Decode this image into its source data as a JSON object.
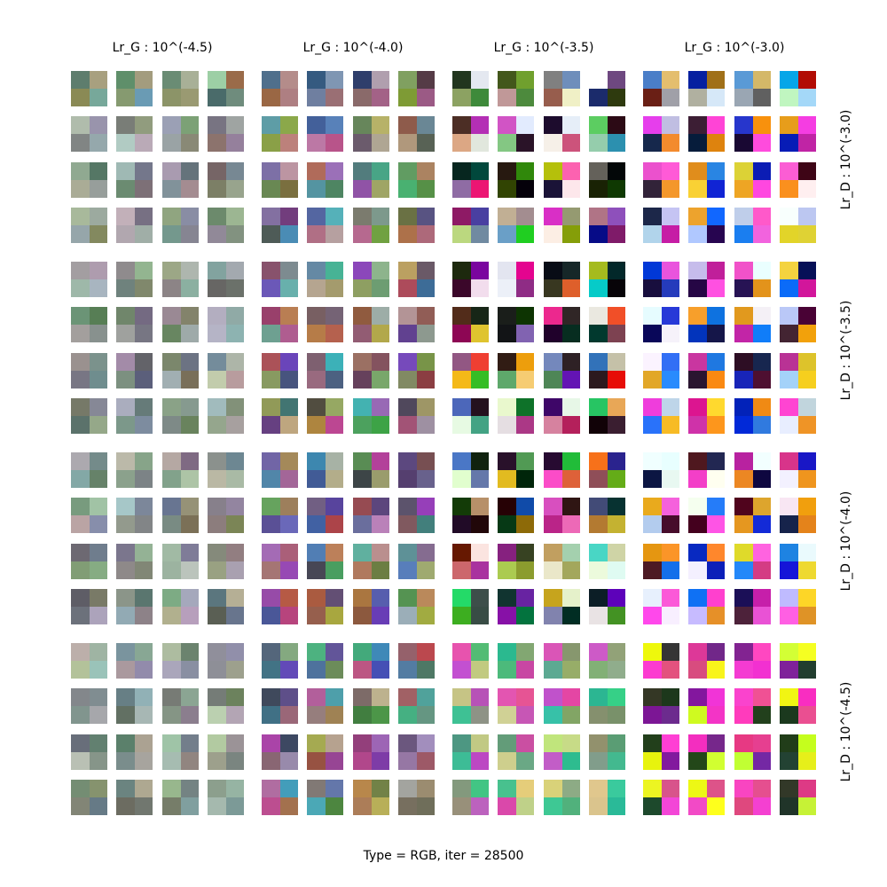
{
  "chart_data": {
    "type": "heatmap",
    "caption": "Type = RGB, iter = 28500",
    "col_titles": [
      "Lr_G : 10^(-4.5)",
      "Lr_G : 10^(-4.0)",
      "Lr_G : 10^(-3.5)",
      "Lr_G : 10^(-3.0)"
    ],
    "row_titles": [
      "Lr_D : 10^(-3.0)",
      "Lr_D : 10^(-3.5)",
      "Lr_D : 10^(-4.0)",
      "Lr_D : 10^(-4.5)"
    ],
    "grid": "4x4 panels, each 4x4 samples of 2x2 RGB pixels",
    "samples": {
      "0_0": [
        "#5e7d6d",
        "#a8a07f",
        "#8a8a55",
        "#77a89a"
      ],
      "0_1": [
        "#5f8f6a",
        "#a39c7e",
        "#869a70",
        "#6a9bb4"
      ],
      "0_2": [
        "#6a8c74",
        "#a8b097",
        "#8c9468",
        "#9a9a72"
      ],
      "0_3": [
        "#9dcfa5",
        "#9a6b49",
        "#4a6b6a",
        "#6f8c7d"
      ],
      "0_4": [
        "#4f6f8c",
        "#b48c8a",
        "#9a6744",
        "#ae7f82"
      ],
      "0_5": [
        "#355a80",
        "#7f96b3",
        "#6f7fa0",
        "#9a6f74"
      ],
      "0_6": [
        "#2f3e6b",
        "#b09fae",
        "#8a6a6a",
        "#a36287"
      ],
      "0_7": [
        "#80a060",
        "#553b46",
        "#7e9b35",
        "#9b5a85"
      ],
      "0_8": [
        "#22361e",
        "#e4e8f0",
        "#8ca262",
        "#3e8a3a"
      ],
      "0_9": [
        "#43571b",
        "#70a02e",
        "#c09898",
        "#4d8a3d"
      ],
      "0_10": [
        "#808080",
        "#6e8ebb",
        "#975d4d",
        "#f0f0c6"
      ],
      "0_11": [
        "#ffffff",
        "#6e4880",
        "#1b2b6b",
        "#2e3a0e"
      ],
      "0_12": [
        "#4a7ec8",
        "#e4be6e",
        "#6a1f15",
        "#a0a0a8"
      ],
      "0_13": [
        "#0620a0",
        "#a07018",
        "#b0b0a0",
        "#d6e8f8"
      ],
      "0_14": [
        "#5a9ad6",
        "#d4b868",
        "#9aa6b3",
        "#606060"
      ],
      "0_15": [
        "#06a6e8",
        "#b20c04",
        "#c0f6c0",
        "#a4d8f8"
      ]
    }
  }
}
